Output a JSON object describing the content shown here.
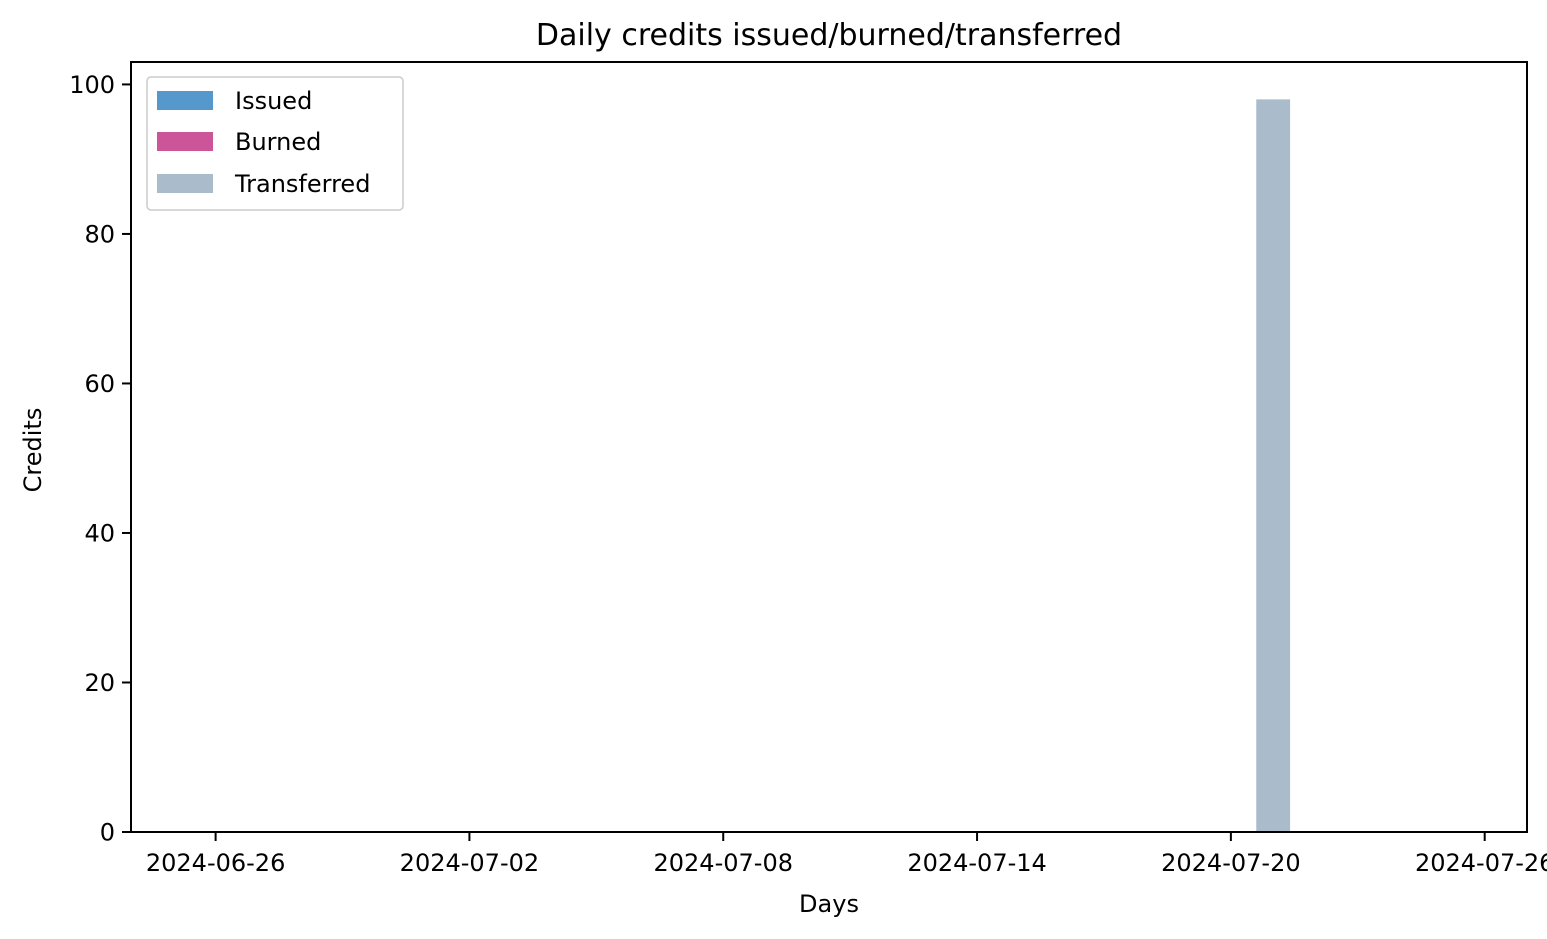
{
  "chart_data": {
    "type": "bar",
    "title": "Daily credits issued/burned/transferred",
    "xlabel": "Days",
    "ylabel": "Credits",
    "x_axis": "date",
    "xlim": [
      "2024-06-24",
      "2024-07-27"
    ],
    "ylim": [
      0,
      103
    ],
    "x_ticks": [
      "2024-06-26",
      "2024-07-02",
      "2024-07-08",
      "2024-07-14",
      "2024-07-20",
      "2024-07-26"
    ],
    "y_ticks": [
      0,
      20,
      40,
      60,
      80,
      100
    ],
    "grid": false,
    "legend_position": "top-left",
    "series": [
      {
        "name": "Issued",
        "color": "#5599cc",
        "points": []
      },
      {
        "name": "Burned",
        "color": "#cc5599",
        "points": []
      },
      {
        "name": "Transferred",
        "color": "#aabbcc",
        "points": [
          {
            "x": "2024-07-21",
            "y": 98
          }
        ]
      }
    ]
  }
}
